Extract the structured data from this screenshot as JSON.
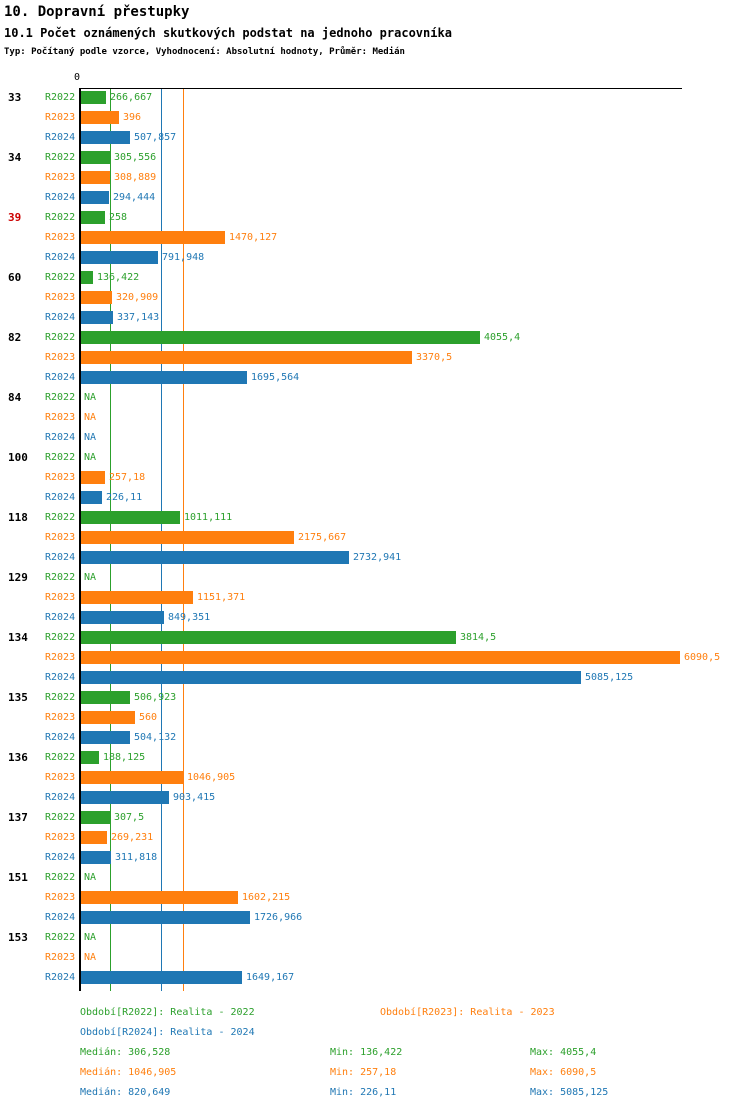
{
  "header": {
    "title": "10. Dopravní přestupky",
    "subtitle": "10.1 Počet oznámených skutkových podstat na jednoho pracovníka",
    "meta": "Typ: Počítaný podle vzorce, Vyhodnocení: Absolutní hodnoty, Průměr: Medián"
  },
  "chart_data": {
    "type": "bar",
    "orientation": "horizontal",
    "title": "10.1 Počet oznámených skutkových podstat na jednoho pracovníka",
    "axis_zero_label": "0",
    "xlim": [
      0,
      6090.5
    ],
    "grid": false,
    "series_names": [
      "R2022",
      "R2023",
      "R2024"
    ],
    "colors": {
      "R2022": "#2ca02c",
      "R2023": "#ff7f0e",
      "R2024": "#1f77b4",
      "axis": "#000000",
      "highlight": "#cc0000"
    },
    "na_label": "NA",
    "groups": [
      {
        "label": "33",
        "highlight": false,
        "values": [
          {
            "value": 266.667,
            "display": "266,667"
          },
          {
            "value": 396,
            "display": "396"
          },
          {
            "value": 507.857,
            "display": "507,857"
          }
        ]
      },
      {
        "label": "34",
        "highlight": false,
        "values": [
          {
            "value": 305.556,
            "display": "305,556"
          },
          {
            "value": 308.889,
            "display": "308,889"
          },
          {
            "value": 294.444,
            "display": "294,444"
          }
        ]
      },
      {
        "label": "39",
        "highlight": true,
        "values": [
          {
            "value": 258,
            "display": "258"
          },
          {
            "value": 1470.127,
            "display": "1470,127"
          },
          {
            "value": 791.948,
            "display": "791,948"
          }
        ]
      },
      {
        "label": "60",
        "highlight": false,
        "values": [
          {
            "value": 136.422,
            "display": "136,422"
          },
          {
            "value": 320.909,
            "display": "320,909"
          },
          {
            "value": 337.143,
            "display": "337,143"
          }
        ]
      },
      {
        "label": "82",
        "highlight": false,
        "values": [
          {
            "value": 4055.4,
            "display": "4055,4"
          },
          {
            "value": 3370.5,
            "display": "3370,5"
          },
          {
            "value": 1695.564,
            "display": "1695,564"
          }
        ]
      },
      {
        "label": "84",
        "highlight": false,
        "values": [
          {
            "value": null,
            "display": "NA"
          },
          {
            "value": null,
            "display": "NA"
          },
          {
            "value": null,
            "display": "NA"
          }
        ]
      },
      {
        "label": "100",
        "highlight": false,
        "values": [
          {
            "value": null,
            "display": "NA"
          },
          {
            "value": 257.18,
            "display": "257,18"
          },
          {
            "value": 226.11,
            "display": "226,11"
          }
        ]
      },
      {
        "label": "118",
        "highlight": false,
        "values": [
          {
            "value": 1011.111,
            "display": "1011,111"
          },
          {
            "value": 2175.667,
            "display": "2175,667"
          },
          {
            "value": 2732.941,
            "display": "2732,941"
          }
        ]
      },
      {
        "label": "129",
        "highlight": false,
        "values": [
          {
            "value": null,
            "display": "NA"
          },
          {
            "value": 1151.371,
            "display": "1151,371"
          },
          {
            "value": 849.351,
            "display": "849,351"
          }
        ]
      },
      {
        "label": "134",
        "highlight": false,
        "values": [
          {
            "value": 3814.5,
            "display": "3814,5"
          },
          {
            "value": 6090.5,
            "display": "6090,5"
          },
          {
            "value": 5085.125,
            "display": "5085,125"
          }
        ]
      },
      {
        "label": "135",
        "highlight": false,
        "values": [
          {
            "value": 506.923,
            "display": "506,923"
          },
          {
            "value": 560,
            "display": "560"
          },
          {
            "value": 504.132,
            "display": "504,132"
          }
        ]
      },
      {
        "label": "136",
        "highlight": false,
        "values": [
          {
            "value": 188.125,
            "display": "188,125"
          },
          {
            "value": 1046.905,
            "display": "1046,905"
          },
          {
            "value": 903.415,
            "display": "903,415"
          }
        ]
      },
      {
        "label": "137",
        "highlight": false,
        "values": [
          {
            "value": 307.5,
            "display": "307,5"
          },
          {
            "value": 269.231,
            "display": "269,231"
          },
          {
            "value": 311.818,
            "display": "311,818"
          }
        ]
      },
      {
        "label": "151",
        "highlight": false,
        "values": [
          {
            "value": null,
            "display": "NA"
          },
          {
            "value": 1602.215,
            "display": "1602,215"
          },
          {
            "value": 1726.966,
            "display": "1726,966"
          }
        ]
      },
      {
        "label": "153",
        "highlight": false,
        "values": [
          {
            "value": null,
            "display": "NA"
          },
          {
            "value": null,
            "display": "NA"
          },
          {
            "value": 1649.167,
            "display": "1649,167"
          }
        ]
      }
    ],
    "reference_lines": [
      {
        "series": "R2022",
        "value": 306.528
      },
      {
        "series": "R2024",
        "value": 820.649
      },
      {
        "series": "R2023",
        "value": 1046.905
      }
    ],
    "legend": [
      {
        "series": "R2022",
        "label": "Období[R2022]: Realita - 2022"
      },
      {
        "series": "R2023",
        "label": "Období[R2023]: Realita - 2023"
      },
      {
        "series": "R2024",
        "label": "Období[R2024]: Realita - 2024"
      }
    ],
    "stats": [
      {
        "series": "R2022",
        "median": "Medián: 306,528",
        "min": "Min: 136,422",
        "max": "Max: 4055,4"
      },
      {
        "series": "R2023",
        "median": "Medián: 1046,905",
        "min": "Min: 257,18",
        "max": "Max: 6090,5"
      },
      {
        "series": "R2024",
        "median": "Medián: 820,649",
        "min": "Min: 226,11",
        "max": "Max: 5085,125"
      }
    ]
  }
}
